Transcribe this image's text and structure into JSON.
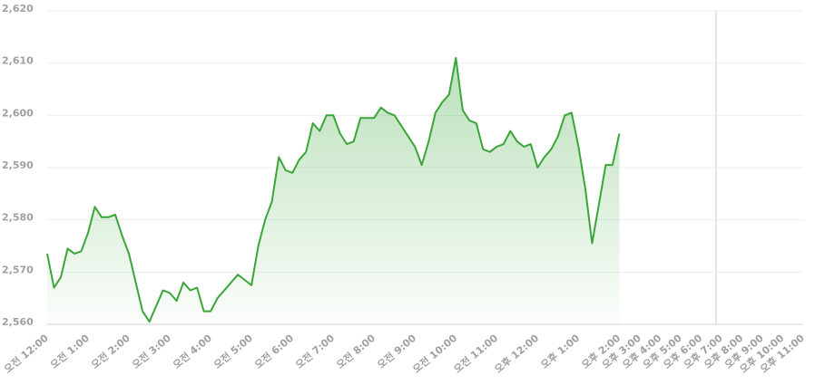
{
  "chart_data": {
    "type": "area",
    "categories": [
      "오전 12:00",
      null,
      null,
      null,
      null,
      null,
      "오전 1:00",
      null,
      null,
      null,
      null,
      null,
      "오전 2:00",
      null,
      null,
      null,
      null,
      null,
      "오전 3:00",
      null,
      null,
      null,
      null,
      null,
      "오전 4:00",
      null,
      null,
      null,
      null,
      null,
      "오전 5:00",
      null,
      null,
      null,
      null,
      null,
      "오전 6:00",
      null,
      null,
      null,
      null,
      null,
      "오전 7:00",
      null,
      null,
      null,
      null,
      null,
      "오전 8:00",
      null,
      null,
      null,
      null,
      null,
      "오전 9:00",
      null,
      null,
      null,
      null,
      null,
      "오전 10:00",
      null,
      null,
      null,
      null,
      null,
      "오전 11:00",
      null,
      null,
      null,
      null,
      null,
      "오후 12:00",
      null,
      null,
      null,
      null,
      null,
      "오후 1:00",
      null,
      null,
      null,
      null,
      null,
      "오후 2:00",
      null,
      null,
      "오후 3:00",
      null,
      null,
      "오후 4:00",
      null,
      null,
      "오후 5:00",
      null,
      null,
      "오후 6:00",
      null,
      null,
      "오후 7:00",
      null,
      null,
      "오후 8:00",
      null,
      null,
      "오후 9:00",
      null,
      null,
      "오후 10:00",
      null,
      null,
      "오후 11:00"
    ],
    "values": [
      2573.5,
      2567,
      2569,
      2574.5,
      2573.5,
      2574,
      2577.5,
      2582.5,
      2580.5,
      2580.5,
      2581,
      2577,
      2573.5,
      2568,
      2562.5,
      2560.5,
      2563.5,
      2566.5,
      2566,
      2564.5,
      2568,
      2566.5,
      2567,
      2562.5,
      2562.5,
      2565,
      2566.5,
      2568,
      2569.5,
      2568.5,
      2567.5,
      2575,
      2580,
      2583.5,
      2592,
      2589.5,
      2589,
      2591.5,
      2593,
      2598.5,
      2597,
      2600,
      2600,
      2596.5,
      2594.5,
      2595,
      2599.5,
      2599.5,
      2599.5,
      2601.5,
      2600.5,
      2600,
      2598,
      2596,
      2594,
      2590.5,
      2595,
      2600.5,
      2602.5,
      2604,
      2611,
      2601,
      2599,
      2598.5,
      2593.5,
      2593,
      2594,
      2594.5,
      2597,
      2595,
      2594,
      2594.5,
      2590,
      2592,
      2593.5,
      2596,
      2600,
      2600.5,
      2594,
      2586,
      2575.5,
      2583,
      2590.5,
      2590.5,
      2596.5,
      null,
      null,
      null,
      null,
      null,
      null,
      null,
      null,
      null,
      null,
      null,
      null,
      null,
      null,
      null,
      null,
      null,
      null,
      null,
      null,
      null,
      null,
      null,
      null,
      null,
      null,
      null
    ],
    "color": "#3aa63a",
    "ylim": [
      2560,
      2620
    ],
    "yticks": [
      {
        "value": 2560,
        "label": "2,560"
      },
      {
        "value": 2570,
        "label": "2,570"
      },
      {
        "value": 2580,
        "label": "2,580"
      },
      {
        "value": 2590,
        "label": "2,590"
      },
      {
        "value": 2600,
        "label": "2,600"
      },
      {
        "value": 2610,
        "label": "2,610"
      },
      {
        "value": 2620,
        "label": "2,620"
      }
    ],
    "grid": true
  }
}
